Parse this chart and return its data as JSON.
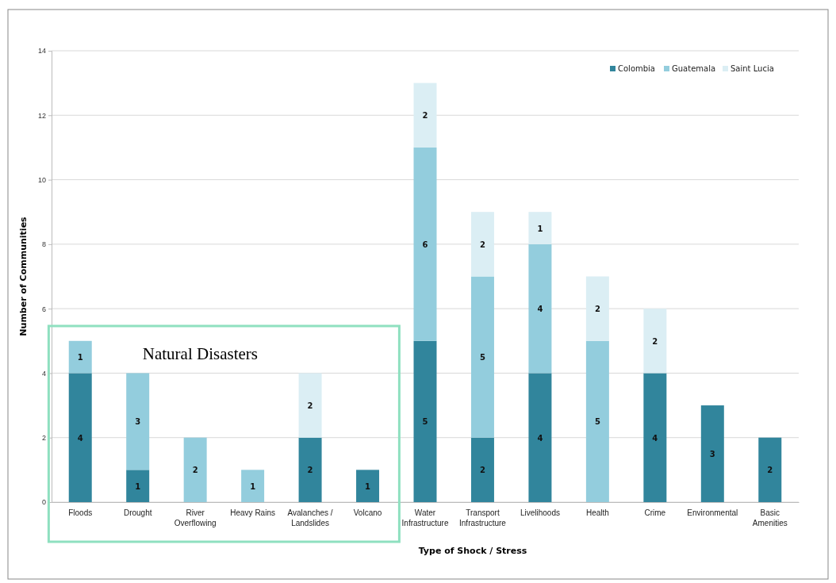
{
  "chart_data": {
    "type": "bar",
    "stacked": true,
    "xlabel": "Type of Shock / Stress",
    "ylabel": "Number of Communities",
    "categories": [
      "Floods",
      "Drought",
      "River Overflowing",
      "Heavy Rains",
      "Avalanches / Landslides",
      "Volcano",
      "Water Infrastructure",
      "Transport Infrastructure",
      "Livelihoods",
      "Health",
      "Crime",
      "Environmental",
      "Basic Amenities"
    ],
    "series": [
      {
        "name": "Colombia",
        "color": "#31859c",
        "values": [
          4,
          1,
          null,
          null,
          2,
          1,
          5,
          2,
          4,
          null,
          4,
          3,
          2
        ]
      },
      {
        "name": "Guatemala",
        "color": "#93cddd",
        "values": [
          1,
          3,
          2,
          1,
          null,
          null,
          6,
          5,
          4,
          5,
          null,
          null,
          null
        ]
      },
      {
        "name": "Saint Lucia",
        "color": "#dbeef4",
        "values": [
          null,
          null,
          null,
          null,
          2,
          null,
          2,
          2,
          1,
          2,
          2,
          null,
          null
        ]
      }
    ],
    "ylim": [
      0,
      14
    ],
    "yticks": [
      0,
      2,
      4,
      6,
      8,
      10,
      12,
      14
    ],
    "grid": "y",
    "legend": "top right",
    "data_labels": true,
    "annotations": [
      "Natural Disasters"
    ]
  }
}
